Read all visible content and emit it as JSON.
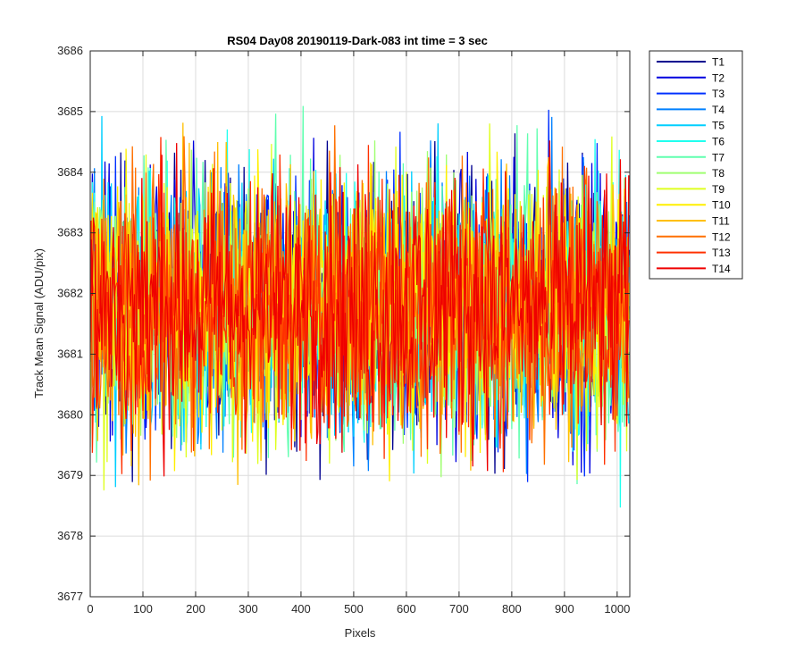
{
  "chart_data": {
    "type": "line",
    "title": "RS04 Day08 20190119-Dark-083 int time = 3 sec",
    "xlabel": "Pixels",
    "ylabel": "Track Mean Signal (ADU/pix)",
    "xlim": [
      0,
      1024
    ],
    "ylim": [
      3677,
      3686
    ],
    "xticks": [
      0,
      100,
      200,
      300,
      400,
      500,
      600,
      700,
      800,
      900,
      1000
    ],
    "yticks": [
      3677,
      3678,
      3679,
      3680,
      3681,
      3682,
      3683,
      3684,
      3685,
      3686
    ],
    "grid": true,
    "legend_position": "outside-right",
    "series_summary": {
      "n_points_per_series": 1024,
      "center_value": 3681.8,
      "typical_low": 3679.8,
      "typical_high": 3684.2,
      "note": "Dark-frame noise: each track fluctuates randomly around ~3681.8 ADU/pix across pixels 0-1024"
    },
    "series": [
      {
        "name": "T1",
        "color": "#00008F"
      },
      {
        "name": "T2",
        "color": "#0000DF"
      },
      {
        "name": "T3",
        "color": "#0030FF"
      },
      {
        "name": "T4",
        "color": "#0080FF"
      },
      {
        "name": "T5",
        "color": "#00CFFF"
      },
      {
        "name": "T6",
        "color": "#20FFEF"
      },
      {
        "name": "T7",
        "color": "#60FFAF"
      },
      {
        "name": "T8",
        "color": "#9FFF70"
      },
      {
        "name": "T9",
        "color": "#DFFF20"
      },
      {
        "name": "T10",
        "color": "#FFEF00"
      },
      {
        "name": "T11",
        "color": "#FFBF00"
      },
      {
        "name": "T12",
        "color": "#FF7000"
      },
      {
        "name": "T13",
        "color": "#FF3000"
      },
      {
        "name": "T14",
        "color": "#EF0000"
      }
    ]
  }
}
